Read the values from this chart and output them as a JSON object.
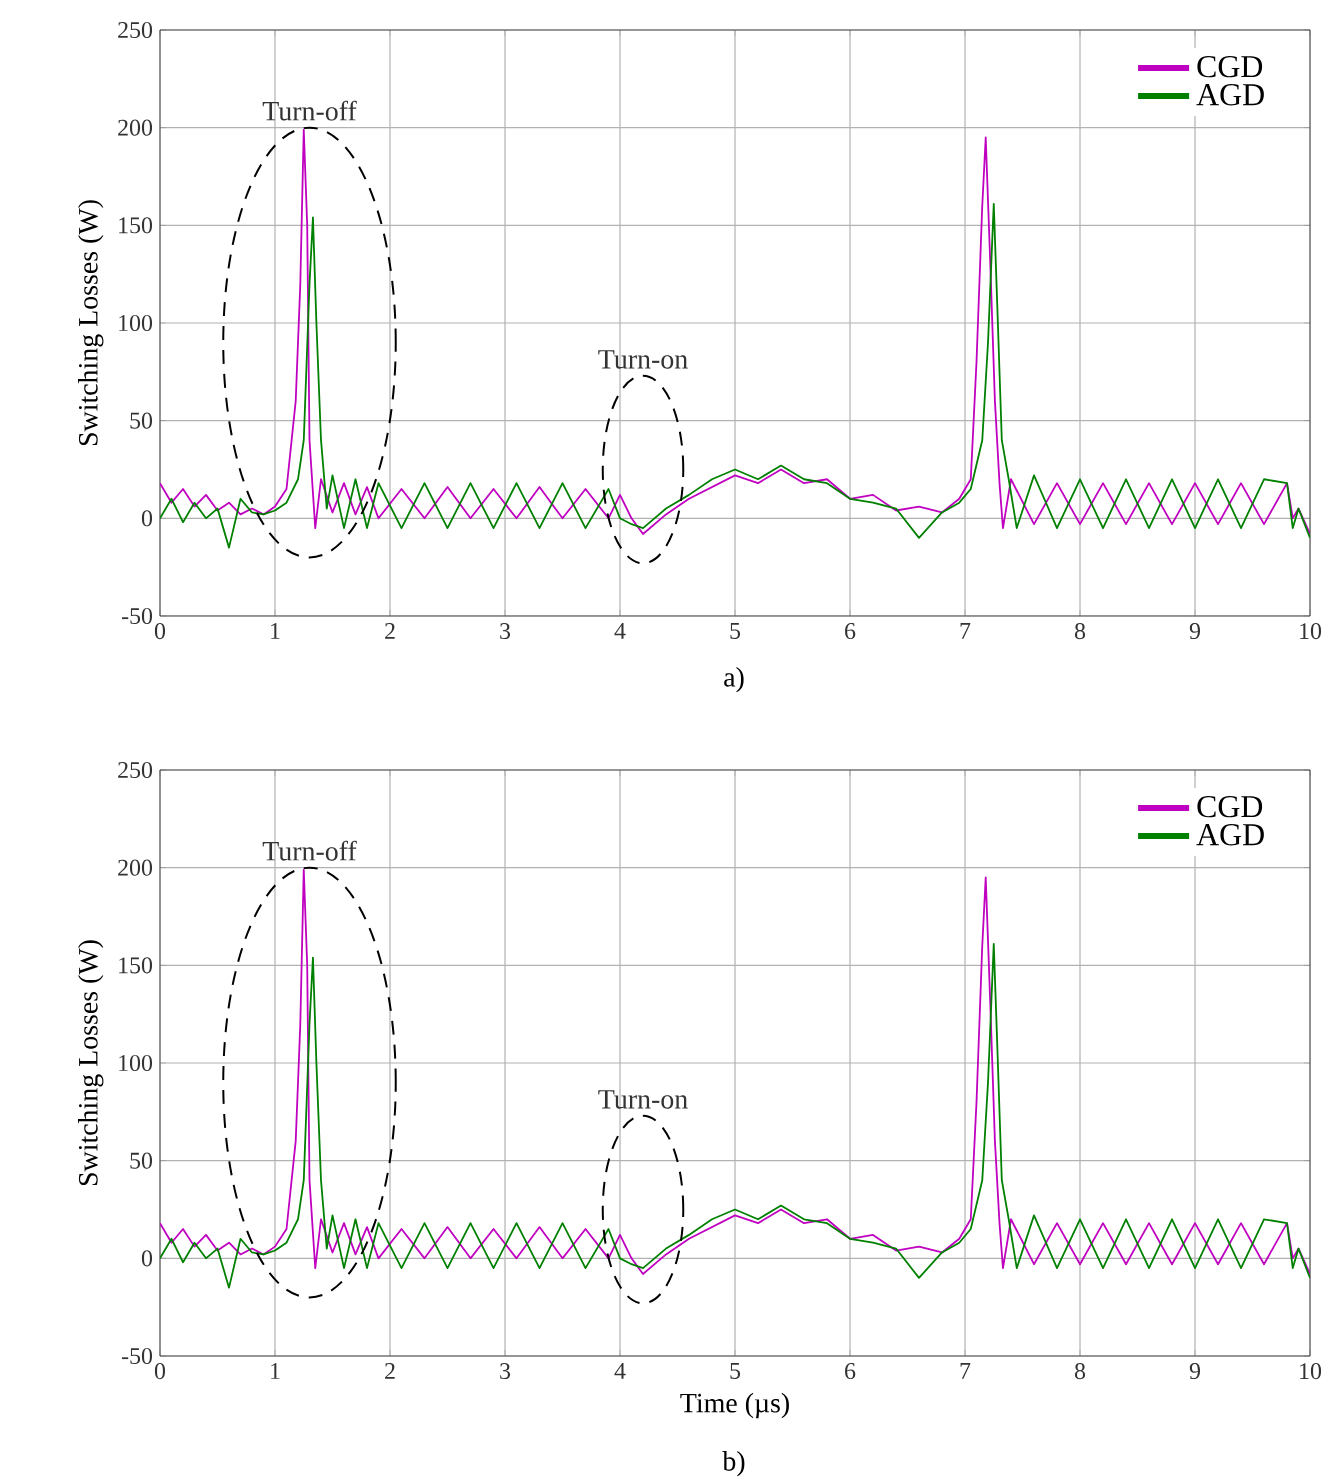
{
  "chart_data": [
    {
      "type": "line",
      "ylabel": "Switching Losses (W)",
      "xlim": [
        0,
        10
      ],
      "ylim": [
        -50,
        250
      ],
      "xticks": [
        0,
        1,
        2,
        3,
        4,
        5,
        6,
        7,
        8,
        9,
        10
      ],
      "yticks": [
        -50,
        0,
        50,
        100,
        150,
        200,
        250
      ],
      "grid": true,
      "legend": "top right",
      "line_style": "solid",
      "annotations": [
        "Turn-off",
        "Turn-on",
        "a)"
      ],
      "series": [
        {
          "name": "CGD",
          "color": "#c000c0",
          "x": [
            0,
            0.1,
            0.2,
            0.3,
            0.4,
            0.5,
            0.6,
            0.7,
            0.8,
            0.9,
            1.0,
            1.1,
            1.18,
            1.22,
            1.25,
            1.28,
            1.3,
            1.35,
            1.4,
            1.5,
            1.6,
            1.7,
            1.8,
            1.9,
            2.1,
            2.3,
            2.5,
            2.7,
            2.9,
            3.1,
            3.3,
            3.5,
            3.7,
            3.9,
            4.0,
            4.1,
            4.2,
            4.3,
            4.4,
            4.6,
            4.8,
            5.0,
            5.2,
            5.4,
            5.6,
            5.8,
            6.0,
            6.2,
            6.4,
            6.6,
            6.8,
            6.95,
            7.05,
            7.1,
            7.15,
            7.18,
            7.22,
            7.26,
            7.3,
            7.33,
            7.4,
            7.6,
            7.8,
            8.0,
            8.2,
            8.4,
            8.6,
            8.8,
            9.0,
            9.2,
            9.4,
            9.6,
            9.8,
            9.85,
            9.9,
            10
          ],
          "values": [
            18,
            8,
            15,
            6,
            12,
            4,
            8,
            2,
            5,
            2,
            6,
            15,
            60,
            120,
            199,
            150,
            40,
            -5,
            20,
            3,
            18,
            2,
            16,
            0,
            15,
            0,
            16,
            0,
            15,
            0,
            16,
            0,
            15,
            0,
            12,
            0,
            -8,
            -3,
            2,
            10,
            16,
            22,
            18,
            25,
            18,
            20,
            10,
            12,
            4,
            6,
            3,
            10,
            20,
            80,
            160,
            195,
            130,
            60,
            18,
            -5,
            20,
            -3,
            18,
            -3,
            18,
            -3,
            18,
            -3,
            18,
            -3,
            18,
            -3,
            18,
            0,
            5,
            -8
          ]
        },
        {
          "name": "AGD",
          "color": "#008000",
          "x": [
            0,
            0.1,
            0.2,
            0.3,
            0.4,
            0.5,
            0.6,
            0.7,
            0.8,
            0.9,
            1.0,
            1.1,
            1.2,
            1.25,
            1.3,
            1.33,
            1.36,
            1.4,
            1.45,
            1.5,
            1.6,
            1.7,
            1.8,
            1.9,
            2.1,
            2.3,
            2.5,
            2.7,
            2.9,
            3.1,
            3.3,
            3.5,
            3.7,
            3.9,
            4.0,
            4.1,
            4.2,
            4.3,
            4.4,
            4.6,
            4.8,
            5.0,
            5.2,
            5.4,
            5.6,
            5.8,
            6.0,
            6.2,
            6.4,
            6.6,
            6.8,
            6.95,
            7.05,
            7.15,
            7.2,
            7.25,
            7.28,
            7.32,
            7.38,
            7.45,
            7.6,
            7.8,
            8.0,
            8.2,
            8.4,
            8.6,
            8.8,
            9.0,
            9.2,
            9.4,
            9.6,
            9.8,
            9.85,
            9.9,
            10
          ],
          "values": [
            0,
            10,
            -2,
            8,
            0,
            5,
            -15,
            10,
            3,
            2,
            4,
            8,
            20,
            40,
            120,
            154,
            100,
            40,
            5,
            22,
            -5,
            20,
            -5,
            18,
            -5,
            18,
            -5,
            18,
            -5,
            18,
            -5,
            18,
            -5,
            15,
            0,
            -3,
            -5,
            0,
            5,
            12,
            20,
            25,
            20,
            27,
            20,
            18,
            10,
            8,
            5,
            -10,
            3,
            8,
            15,
            40,
            90,
            161,
            110,
            40,
            20,
            -5,
            22,
            -5,
            20,
            -5,
            20,
            -5,
            20,
            -5,
            20,
            -5,
            20,
            18,
            -5,
            5,
            -10
          ]
        }
      ]
    },
    {
      "type": "line",
      "xlabel": "Time (µs)",
      "ylabel": "Switching Losses (W)",
      "xlim": [
        0,
        10
      ],
      "ylim": [
        -50,
        250
      ],
      "xticks": [
        0,
        1,
        2,
        3,
        4,
        5,
        6,
        7,
        8,
        9,
        10
      ],
      "yticks": [
        -50,
        0,
        50,
        100,
        150,
        200,
        250
      ],
      "grid": true,
      "legend": "top right",
      "line_style": "solid",
      "annotations": [
        "Turn-off",
        "Turn-on",
        "b)"
      ],
      "series": [
        {
          "name": "CGD",
          "color": "#c000c0",
          "x": [
            0,
            0.1,
            0.2,
            0.3,
            0.4,
            0.5,
            0.6,
            0.7,
            0.8,
            0.9,
            1.0,
            1.1,
            1.18,
            1.22,
            1.25,
            1.28,
            1.3,
            1.35,
            1.4,
            1.5,
            1.6,
            1.7,
            1.8,
            1.9,
            2.1,
            2.3,
            2.5,
            2.7,
            2.9,
            3.1,
            3.3,
            3.5,
            3.7,
            3.9,
            4.0,
            4.1,
            4.2,
            4.3,
            4.4,
            4.6,
            4.8,
            5.0,
            5.2,
            5.4,
            5.6,
            5.8,
            6.0,
            6.2,
            6.4,
            6.6,
            6.8,
            6.95,
            7.05,
            7.1,
            7.15,
            7.18,
            7.22,
            7.26,
            7.3,
            7.33,
            7.4,
            7.6,
            7.8,
            8.0,
            8.2,
            8.4,
            8.6,
            8.8,
            9.0,
            9.2,
            9.4,
            9.6,
            9.8,
            9.85,
            9.9,
            10
          ],
          "values": [
            18,
            8,
            15,
            6,
            12,
            4,
            8,
            2,
            5,
            2,
            6,
            15,
            60,
            120,
            199,
            150,
            40,
            -5,
            20,
            3,
            18,
            2,
            16,
            0,
            15,
            0,
            16,
            0,
            15,
            0,
            16,
            0,
            15,
            0,
            12,
            0,
            -8,
            -3,
            2,
            10,
            16,
            22,
            18,
            25,
            18,
            20,
            10,
            12,
            4,
            6,
            3,
            10,
            20,
            80,
            160,
            195,
            130,
            60,
            18,
            -5,
            20,
            -3,
            18,
            -3,
            18,
            -3,
            18,
            -3,
            18,
            -3,
            18,
            -3,
            18,
            0,
            5,
            -8
          ]
        },
        {
          "name": "AGD",
          "color": "#008000",
          "x": [
            0,
            0.1,
            0.2,
            0.3,
            0.4,
            0.5,
            0.6,
            0.7,
            0.8,
            0.9,
            1.0,
            1.1,
            1.2,
            1.25,
            1.3,
            1.33,
            1.36,
            1.4,
            1.45,
            1.5,
            1.6,
            1.7,
            1.8,
            1.9,
            2.1,
            2.3,
            2.5,
            2.7,
            2.9,
            3.1,
            3.3,
            3.5,
            3.7,
            3.9,
            4.0,
            4.1,
            4.2,
            4.3,
            4.4,
            4.6,
            4.8,
            5.0,
            5.2,
            5.4,
            5.6,
            5.8,
            6.0,
            6.2,
            6.4,
            6.6,
            6.8,
            6.95,
            7.05,
            7.15,
            7.2,
            7.25,
            7.28,
            7.32,
            7.38,
            7.45,
            7.6,
            7.8,
            8.0,
            8.2,
            8.4,
            8.6,
            8.8,
            9.0,
            9.2,
            9.4,
            9.6,
            9.8,
            9.85,
            9.9,
            10
          ],
          "values": [
            0,
            10,
            -2,
            8,
            0,
            5,
            -15,
            10,
            3,
            2,
            4,
            8,
            20,
            40,
            120,
            154,
            100,
            40,
            5,
            22,
            -5,
            20,
            -5,
            18,
            -5,
            18,
            -5,
            18,
            -5,
            18,
            -5,
            18,
            -5,
            15,
            0,
            -3,
            -5,
            0,
            5,
            12,
            20,
            25,
            20,
            27,
            20,
            18,
            10,
            8,
            5,
            -10,
            3,
            8,
            15,
            40,
            90,
            161,
            110,
            40,
            20,
            -5,
            22,
            -5,
            20,
            -5,
            20,
            -5,
            20,
            -5,
            20,
            -5,
            20,
            18,
            -5,
            5,
            -10
          ]
        }
      ]
    }
  ]
}
